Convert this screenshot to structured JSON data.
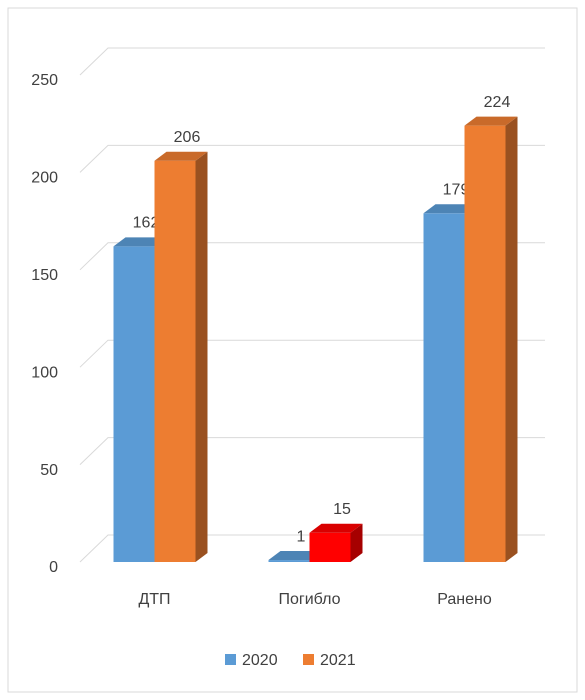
{
  "chart_data": {
    "type": "bar3d",
    "categories": [
      "ДТП",
      "Погибло",
      "Ранено"
    ],
    "series": [
      {
        "name": "2020",
        "color": "#5b9bd5",
        "values": [
          162,
          1,
          179
        ]
      },
      {
        "name": "2021",
        "color": "#ed7d31",
        "colors": [
          "#ed7d31",
          "#ff0000",
          "#ed7d31"
        ],
        "values": [
          206,
          15,
          224
        ]
      }
    ],
    "ylim": [
      0,
      250
    ],
    "yticks": [
      0,
      50,
      100,
      150,
      200,
      250
    ],
    "grid": true,
    "legend": "bottom"
  }
}
